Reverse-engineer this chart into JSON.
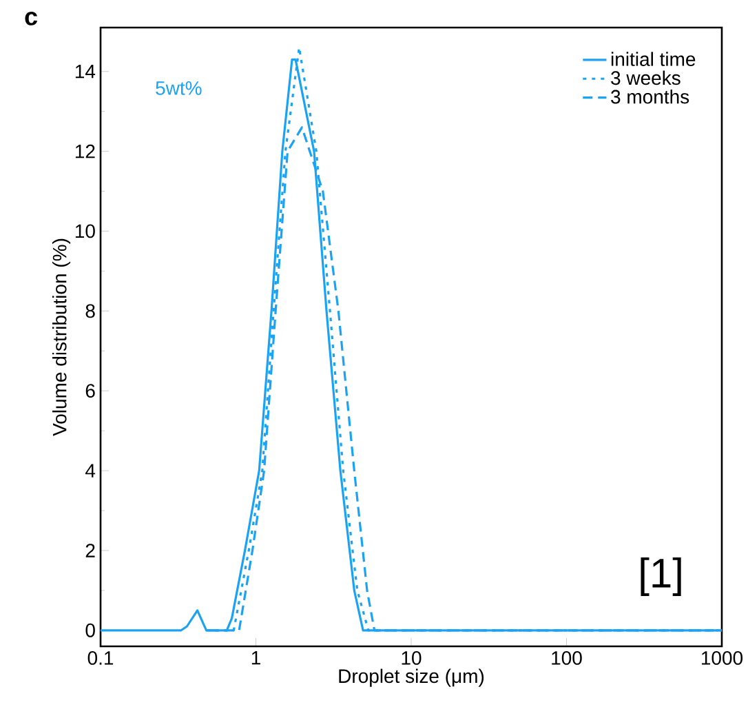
{
  "chart_data": {
    "type": "line",
    "xlabel": "Droplet size (μm)",
    "ylabel": "Volume distribution (%)",
    "log": "x",
    "xlim": [
      0.1,
      1000
    ],
    "ylim": [
      -0.4,
      15.1
    ],
    "xticks": [
      0.1,
      1,
      10,
      100,
      1000
    ],
    "yticks": [
      0,
      2,
      4,
      6,
      8,
      10,
      12,
      14
    ],
    "legend": "top right",
    "grid": false,
    "annotations": [
      "c",
      "5wt%",
      "[1]"
    ],
    "series": [
      {
        "name": "initial time",
        "color": "#1aa3f5",
        "line_style": "solid",
        "x": [
          0.1,
          0.33,
          0.36,
          0.42,
          0.48,
          0.65,
          0.7,
          0.85,
          1.05,
          1.26,
          1.48,
          1.71,
          1.8,
          2.37,
          2.85,
          3.5,
          4.3,
          4.9,
          1000
        ],
        "values": [
          0,
          0,
          0.1,
          0.5,
          0,
          0,
          0.3,
          2,
          4,
          8,
          12,
          14.3,
          14.3,
          12,
          8,
          4,
          1,
          0,
          0
        ]
      },
      {
        "name": "3 weeks",
        "color": "#1aa3f5",
        "line_style": "dotted",
        "x": [
          0.48,
          0.72,
          0.9,
          1.1,
          1.3,
          1.55,
          1.9,
          2.45,
          3.0,
          3.65,
          4.5,
          5.3,
          1000
        ],
        "values": [
          0,
          0,
          2,
          4,
          8,
          12,
          14.6,
          12,
          8,
          4,
          1,
          0,
          0
        ]
      },
      {
        "name": "3 months",
        "color": "#1aa3f5",
        "line_style": "dashed",
        "x": [
          0.5,
          0.78,
          0.95,
          1.13,
          1.34,
          1.6,
          1.98,
          2.7,
          3.4,
          4.3,
          5.2,
          5.8,
          1000
        ],
        "values": [
          0,
          0,
          2,
          4,
          8,
          12,
          12.6,
          11,
          8,
          4,
          1,
          0,
          0
        ]
      }
    ]
  }
}
